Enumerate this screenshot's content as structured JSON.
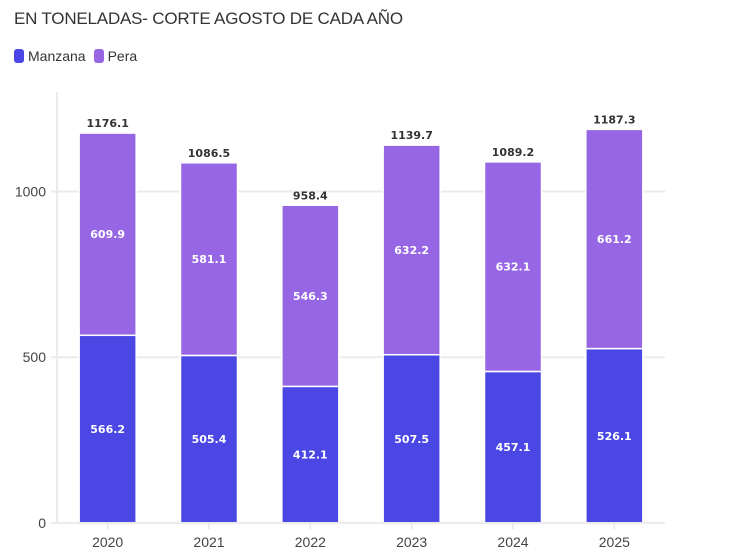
{
  "chart_data": {
    "type": "bar",
    "stacked": true,
    "title": "EN TONELADAS- CORTE AGOSTO DE CADA AÑO",
    "xlabel": "",
    "ylabel": "",
    "categories": [
      "2020",
      "2021",
      "2022",
      "2023",
      "2024",
      "2025"
    ],
    "series": [
      {
        "name": "Manzana",
        "color": "#4a47e4",
        "values": [
          566.2,
          505.4,
          412.1,
          507.5,
          457.1,
          526.1
        ]
      },
      {
        "name": "Pera",
        "color": "#9766e4",
        "values": [
          609.9,
          581.1,
          546.3,
          632.2,
          632.1,
          661.2
        ]
      }
    ],
    "totals": [
      1176.1,
      1086.5,
      958.4,
      1139.7,
      1089.2,
      1187.3
    ],
    "ylim": [
      0,
      1300
    ],
    "yticks": [
      0,
      500,
      1000
    ],
    "grid": true,
    "legend_position": "top-left"
  }
}
